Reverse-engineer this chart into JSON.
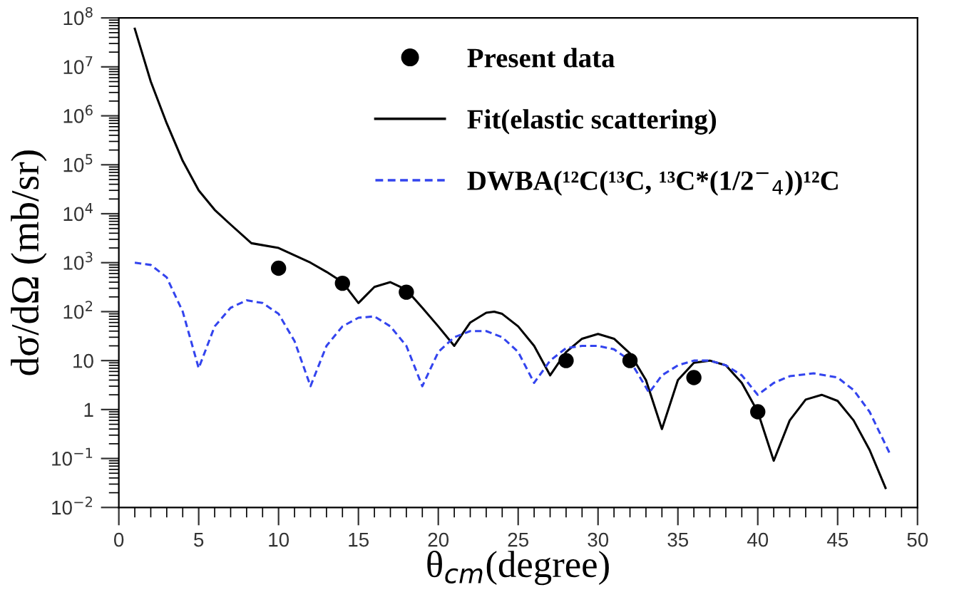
{
  "chart_data": {
    "type": "line",
    "xlabel": "θ$_{cm}$(degree)",
    "ylabel": "dσ/dΩ (mb/sr)",
    "log": "y",
    "grid": false,
    "legend": "top right",
    "xlim": [
      0,
      50
    ],
    "xticks": [
      0,
      5,
      10,
      15,
      20,
      25,
      30,
      35,
      40,
      45,
      50
    ],
    "ylim": [
      0.01,
      100000000
    ],
    "yticks": [
      {
        "value": 0.01,
        "label": "10$^{−2}$"
      },
      {
        "value": 0.1,
        "label": "10$^{−1}$"
      },
      1,
      10,
      {
        "value": 100,
        "label": "10$^{2}$"
      },
      {
        "value": 1000,
        "label": "10$^{3}$"
      },
      {
        "value": 10000,
        "label": "10$^{4}$"
      },
      {
        "value": 100000,
        "label": "10$^{5}$"
      },
      {
        "value": 1000000,
        "label": "10$^{6}$"
      },
      {
        "value": 10000000,
        "label": "10$^{7}$"
      },
      {
        "value": 100000000,
        "label": "10$^{8}$"
      }
    ],
    "series": [
      {
        "name": "Present data",
        "type": "scatter",
        "marker": "circle",
        "color": "#000000",
        "x": [
          10,
          14,
          18,
          28,
          32,
          36,
          40
        ],
        "values": [
          770,
          380,
          250,
          10,
          10,
          4.5,
          0.9
        ]
      },
      {
        "name": "Fit(elastic scattering)",
        "line_style": "solid",
        "marker": "none",
        "color": "#000000",
        "x": [
          1,
          2,
          3,
          4,
          5,
          6,
          7,
          8.3,
          10,
          12,
          13,
          14,
          15,
          16,
          17,
          18,
          19,
          20,
          21,
          22,
          23,
          23.5,
          24,
          25,
          26,
          27,
          28,
          29,
          30,
          31,
          32,
          33,
          34,
          35,
          36,
          37,
          38,
          39,
          40,
          41,
          42,
          43,
          44,
          45,
          46,
          47,
          48
        ],
        "values": [
          60000000,
          5000000,
          700000,
          120000,
          30000,
          12000,
          6000,
          2500,
          2000,
          1000,
          650,
          400,
          150,
          320,
          400,
          280,
          120,
          50,
          20,
          60,
          95,
          100,
          90,
          50,
          20,
          5,
          15,
          28,
          35,
          28,
          14,
          4,
          0.4,
          4,
          9,
          10,
          8,
          3.5,
          0.9,
          0.09,
          0.6,
          1.6,
          2,
          1.5,
          0.6,
          0.15,
          0.025
        ]
      },
      {
        "name": "DWBA(¹²C(¹³C, ¹³C*(1/2$^{−}$$_{4}$))¹²C",
        "line_style": "dashed",
        "marker": "none",
        "color": "#3344ee",
        "x": [
          1,
          2,
          3,
          4,
          5,
          6,
          7,
          8,
          9,
          10,
          11,
          12,
          13,
          14,
          15,
          16,
          17,
          18,
          19,
          20,
          21,
          22,
          23,
          24,
          25,
          26,
          27,
          28,
          29,
          30,
          31,
          32,
          33.2,
          34,
          35,
          36,
          37,
          38,
          39,
          40,
          41,
          42,
          43.5,
          45,
          46,
          47,
          48.3
        ],
        "values": [
          1000,
          900,
          500,
          100,
          7,
          50,
          120,
          170,
          150,
          90,
          25,
          3,
          20,
          50,
          75,
          80,
          50,
          20,
          3,
          15,
          30,
          40,
          40,
          30,
          15,
          3.5,
          10,
          18,
          20,
          20,
          17,
          10,
          2.2,
          5,
          8,
          10,
          10,
          8,
          5,
          2,
          3.5,
          4.8,
          5.5,
          4.5,
          2.5,
          0.9,
          0.12
        ]
      }
    ]
  }
}
